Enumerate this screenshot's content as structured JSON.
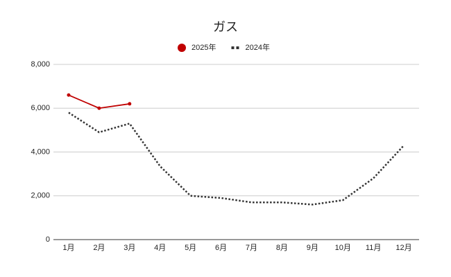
{
  "chart_data": {
    "type": "line",
    "title": "ガス",
    "categories": [
      "1月",
      "2月",
      "3月",
      "4月",
      "5月",
      "6月",
      "7月",
      "8月",
      "9月",
      "10月",
      "11月",
      "12月"
    ],
    "series": [
      {
        "name": "2025年",
        "color": "#c00000",
        "line_style": "solid",
        "markers": true,
        "values": [
          6600,
          6000,
          6200,
          null,
          null,
          null,
          null,
          null,
          null,
          null,
          null,
          null
        ]
      },
      {
        "name": "2024年",
        "color": "#333333",
        "line_style": "dotted",
        "markers": false,
        "values": [
          5800,
          4900,
          5300,
          3350,
          2000,
          1900,
          1700,
          1700,
          1600,
          1800,
          2800,
          4300
        ]
      }
    ],
    "ylim": [
      0,
      8000
    ],
    "yticks": [
      0,
      {
        "value": 2000,
        "label": "2,000"
      },
      {
        "value": 4000,
        "label": "4,000"
      },
      {
        "value": 6000,
        "label": "6,000"
      },
      {
        "value": 8000,
        "label": "8,000"
      }
    ],
    "grid": true,
    "legend": "top"
  }
}
